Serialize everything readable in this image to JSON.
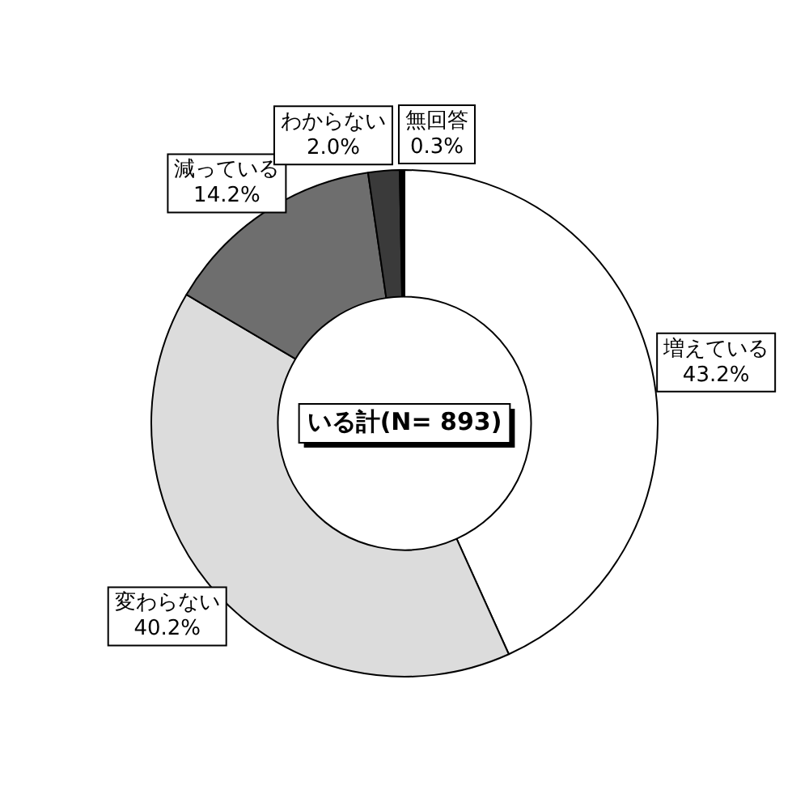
{
  "chart_data": {
    "type": "donut",
    "categories": [
      "増えている",
      "変わらない",
      "減っている",
      "わからない",
      "無回答"
    ],
    "values": [
      43.2,
      40.2,
      14.2,
      2.0,
      0.3
    ],
    "value_labels": [
      "43.2%",
      "40.2%",
      "14.2%",
      "2.0%",
      "0.3%"
    ],
    "colors": [
      "#ffffff",
      "#dcdcdc",
      "#6e6e6e",
      "#3a3a3a",
      "#000000"
    ],
    "annotations": [
      "いる計(N= 893)"
    ],
    "legend": false
  }
}
